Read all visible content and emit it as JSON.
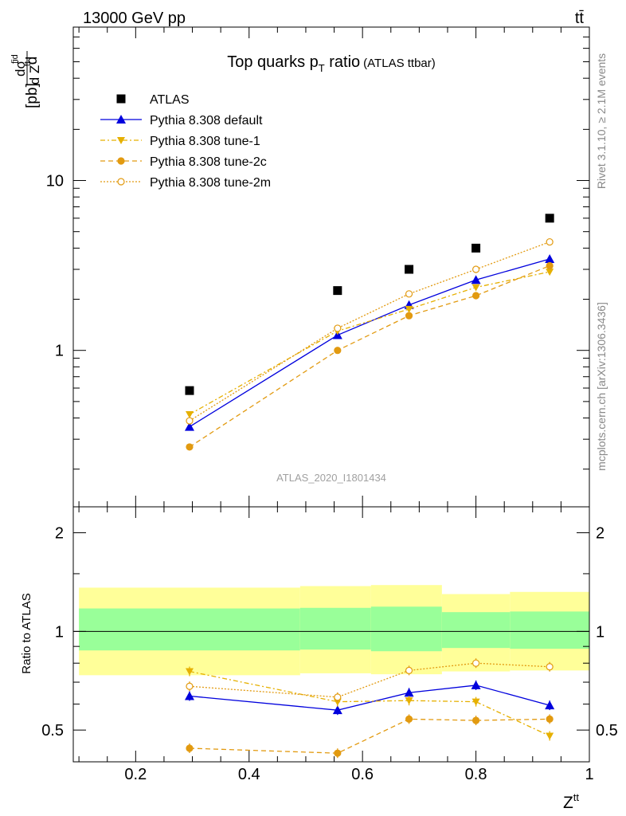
{
  "header": {
    "energy_label": "13000 GeV pp",
    "process_label": "tt̄"
  },
  "side_labels": {
    "rivet": "Rivet 3.1.10, ≥ 2.1M events",
    "mcplots": "mcplots.cern.ch [arXiv:1306.3436]"
  },
  "chart_data": {
    "type": "scatter",
    "title": "Top quarks p",
    "title_sub": "T",
    "title_suffix": " ratio",
    "title_note": "(ATLAS ttbar)",
    "analysis_id": "ATLAS_2020_I1801434",
    "ylabel_main": "dσ/dZ^tt [pb]",
    "ylabel_ratio": "Ratio to ATLAS",
    "xlabel": "Z",
    "xlabel_sup": "tt",
    "xlim": [
      0.09,
      1.0
    ],
    "ylim_main": [
      0.12,
      80
    ],
    "ylim_ratio": [
      0.4,
      2.4
    ],
    "yscale": "log",
    "x_ticks": [
      "0.2",
      "0.4",
      "0.6",
      "0.8",
      "1"
    ],
    "y_ticks_main": [
      "1",
      "10"
    ],
    "y_ticks_ratio": [
      "0.5",
      "1",
      "2"
    ],
    "x": [
      0.295,
      0.556,
      0.682,
      0.8,
      0.93
    ],
    "series": [
      {
        "name": "ATLAS",
        "values": [
          0.58,
          2.25,
          3.0,
          4.0,
          6.0
        ],
        "color": "#000000"
      },
      {
        "name": "Pythia 8.308 default",
        "values": [
          0.355,
          1.23,
          1.85,
          2.6,
          3.45
        ],
        "color": "#0000dd"
      },
      {
        "name": "Pythia 8.308 tune-1",
        "values": [
          0.42,
          1.3,
          1.75,
          2.35,
          2.9
        ],
        "color": "#e6b000"
      },
      {
        "name": "Pythia 8.308 tune-2c",
        "values": [
          0.27,
          1.0,
          1.6,
          2.1,
          3.15
        ],
        "color": "#e29a10"
      },
      {
        "name": "Pythia 8.308 tune-2m",
        "values": [
          0.385,
          1.35,
          2.15,
          3.0,
          4.35
        ],
        "color": "#e29a10"
      }
    ],
    "ratio": [
      {
        "name": "Pythia 8.308 default",
        "values": [
          0.635,
          0.575,
          0.65,
          0.685,
          0.595
        ]
      },
      {
        "name": "Pythia 8.308 tune-1",
        "values": [
          0.755,
          0.61,
          0.615,
          0.61,
          0.48
        ]
      },
      {
        "name": "Pythia 8.308 tune-2c",
        "values": [
          0.44,
          0.425,
          0.54,
          0.535,
          0.54
        ]
      },
      {
        "name": "Pythia 8.308 tune-2m",
        "values": [
          0.68,
          0.63,
          0.76,
          0.8,
          0.78
        ]
      }
    ],
    "uncertainty_bands": {
      "bin_edges": [
        0.1,
        0.49,
        0.615,
        0.74,
        0.86,
        1.0
      ],
      "inner": [
        [
          0.875,
          1.175
        ],
        [
          0.88,
          1.18
        ],
        [
          0.87,
          1.19
        ],
        [
          0.89,
          1.145
        ],
        [
          0.885,
          1.15
        ]
      ],
      "outer": [
        [
          0.735,
          1.36
        ],
        [
          0.745,
          1.375
        ],
        [
          0.74,
          1.385
        ],
        [
          0.755,
          1.3
        ],
        [
          0.76,
          1.32
        ]
      ],
      "inner_color": "#99ff99",
      "outer_color": "#ffff99"
    }
  }
}
